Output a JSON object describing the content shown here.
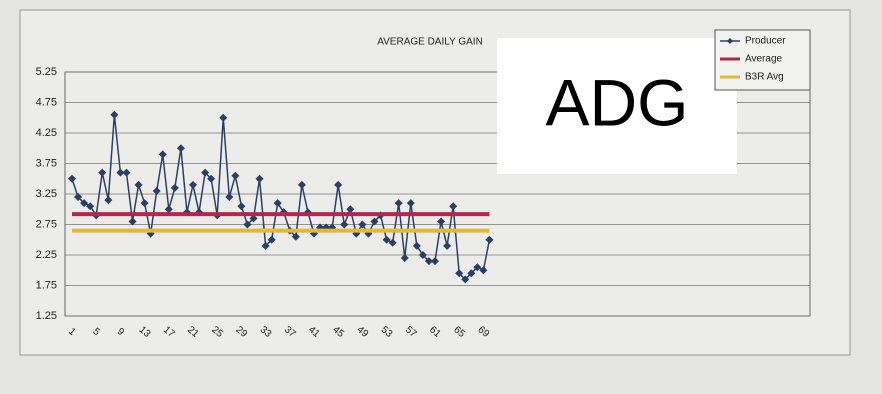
{
  "chart_data": {
    "type": "line",
    "title": "AVERAGE DAILY GAIN",
    "annotation": "ADG",
    "categories": [
      "1",
      null,
      null,
      null,
      "5",
      null,
      null,
      null,
      "9",
      null,
      null,
      null,
      "13",
      null,
      null,
      null,
      "17",
      null,
      null,
      null,
      "21",
      null,
      null,
      null,
      "25",
      null,
      null,
      null,
      "29",
      null,
      null,
      null,
      "33",
      null,
      null,
      null,
      "37",
      null,
      null,
      null,
      "41",
      null,
      null,
      null,
      "45",
      null,
      null,
      null,
      "49",
      null,
      null,
      null,
      "53",
      null,
      null,
      null,
      "57",
      null,
      null,
      null,
      "61",
      null,
      null,
      null,
      "65",
      null,
      null,
      null,
      "69",
      null
    ],
    "series": [
      {
        "name": "Producer",
        "color": "#2b3f66",
        "values": [
          3.5,
          3.2,
          3.1,
          3.05,
          2.9,
          3.6,
          3.15,
          4.55,
          3.6,
          3.6,
          2.8,
          3.4,
          3.1,
          2.6,
          3.3,
          3.9,
          3.0,
          3.35,
          4.0,
          2.95,
          3.4,
          2.95,
          3.6,
          3.5,
          2.9,
          4.5,
          3.2,
          3.55,
          3.05,
          2.75,
          2.85,
          3.5,
          2.4,
          2.5,
          3.1,
          2.95,
          2.65,
          2.55,
          3.4,
          2.95,
          2.6,
          2.7,
          2.7,
          2.7,
          3.4,
          2.75,
          3.0,
          2.6,
          2.75,
          2.6,
          2.8,
          2.9,
          2.5,
          2.45,
          3.1,
          2.2,
          3.1,
          2.4,
          2.25,
          2.15,
          2.15,
          2.8,
          2.4,
          3.05,
          1.95,
          1.85,
          1.95,
          2.05,
          2.0,
          2.5
        ]
      },
      {
        "name": "Average",
        "color": "#b0284f",
        "values": [
          2.92,
          2.92,
          2.92,
          2.92,
          2.92,
          2.92,
          2.92,
          2.92,
          2.92,
          2.92,
          2.92,
          2.92,
          2.92,
          2.92,
          2.92,
          2.92,
          2.92,
          2.92,
          2.92,
          2.92,
          2.92,
          2.92,
          2.92,
          2.92,
          2.92,
          2.92,
          2.92,
          2.92,
          2.92,
          2.92,
          2.92,
          2.92,
          2.92,
          2.92,
          2.92,
          2.92,
          2.92,
          2.92,
          2.92,
          2.92,
          2.92,
          2.92,
          2.92,
          2.92,
          2.92,
          2.92,
          2.92,
          2.92,
          2.92,
          2.92,
          2.92,
          2.92,
          2.92,
          2.92,
          2.92,
          2.92,
          2.92,
          2.92,
          2.92,
          2.92,
          2.92,
          2.92,
          2.92,
          2.92,
          2.92,
          2.92,
          2.92,
          2.92,
          2.92,
          2.92
        ]
      },
      {
        "name": "B3R Avg",
        "color": "#e0b83a",
        "values": [
          2.65,
          2.65,
          2.65,
          2.65,
          2.65,
          2.65,
          2.65,
          2.65,
          2.65,
          2.65,
          2.65,
          2.65,
          2.65,
          2.65,
          2.65,
          2.65,
          2.65,
          2.65,
          2.65,
          2.65,
          2.65,
          2.65,
          2.65,
          2.65,
          2.65,
          2.65,
          2.65,
          2.65,
          2.65,
          2.65,
          2.65,
          2.65,
          2.65,
          2.65,
          2.65,
          2.65,
          2.65,
          2.65,
          2.65,
          2.65,
          2.65,
          2.65,
          2.65,
          2.65,
          2.65,
          2.65,
          2.65,
          2.65,
          2.65,
          2.65,
          2.65,
          2.65,
          2.65,
          2.65,
          2.65,
          2.65,
          2.65,
          2.65,
          2.65,
          2.65,
          2.65,
          2.65,
          2.65,
          2.65,
          2.65,
          2.65,
          2.65,
          2.65,
          2.65,
          2.65
        ]
      }
    ],
    "ylim": [
      1.25,
      5.25
    ],
    "yticks": [
      1.25,
      1.75,
      2.25,
      2.75,
      3.25,
      3.75,
      4.25,
      4.75,
      5.25
    ],
    "grid": true
  }
}
